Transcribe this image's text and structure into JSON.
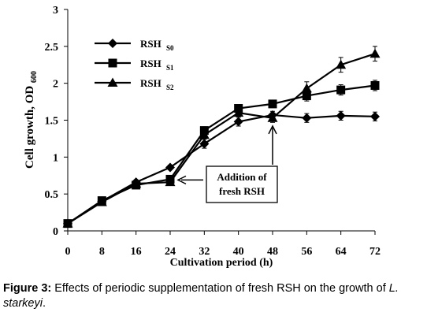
{
  "chart_data": {
    "type": "line",
    "xlabel": "Cultivation period (h)",
    "ylabel": "Cell growth, OD",
    "ylabel_sub": "600",
    "x": [
      0,
      8,
      16,
      24,
      32,
      40,
      48,
      56,
      64,
      72
    ],
    "xlim": [
      0,
      72
    ],
    "ylim": [
      0,
      3
    ],
    "yticks": [
      "0",
      "0.5",
      "1",
      "1.5",
      "2",
      "2.5",
      "3"
    ],
    "xticks": [
      "0",
      "8",
      "16",
      "24",
      "32",
      "40",
      "48",
      "56",
      "64",
      "72"
    ],
    "grid": false,
    "legend_position": "top-left",
    "series": [
      {
        "name": "RSH",
        "name_sub": "S0",
        "marker": "diamond",
        "x": [
          0,
          8,
          16,
          24,
          32,
          40,
          48,
          56,
          64,
          72
        ],
        "values": [
          0.1,
          0.4,
          0.66,
          0.86,
          1.18,
          1.48,
          1.57,
          1.53,
          1.56,
          1.55
        ],
        "errors": [
          0.02,
          0.03,
          0.03,
          0.03,
          0.06,
          0.06,
          0.05,
          0.06,
          0.06,
          0.06
        ]
      },
      {
        "name": "RSH",
        "name_sub": "S1",
        "marker": "square",
        "x": [
          0,
          8,
          16,
          24,
          32,
          40,
          48,
          56,
          64,
          72
        ],
        "values": [
          0.1,
          0.41,
          0.62,
          0.7,
          1.36,
          1.66,
          1.72,
          1.83,
          1.91,
          1.97
        ],
        "errors": [
          0.02,
          0.03,
          0.03,
          0.03,
          0.05,
          0.05,
          0.05,
          0.07,
          0.07,
          0.07
        ]
      },
      {
        "name": "RSH",
        "name_sub": "S2",
        "marker": "triangle",
        "x": [
          0,
          8,
          16,
          24,
          32,
          40,
          48,
          56,
          64,
          72
        ],
        "values": [
          0.1,
          0.39,
          0.64,
          0.66,
          1.3,
          1.6,
          1.53,
          1.93,
          2.25,
          2.4
        ],
        "errors": [
          0.02,
          0.03,
          0.03,
          0.03,
          0.05,
          0.05,
          0.06,
          0.09,
          0.1,
          0.1
        ]
      }
    ],
    "annotations": [
      {
        "text_lines": [
          "Addition of",
          "fresh RSH"
        ],
        "arrow_targets": [
          {
            "x": 24,
            "y": 0.69
          },
          {
            "x": 48,
            "y": 1.4
          }
        ]
      }
    ]
  },
  "caption": {
    "label": "Figure 3:",
    "text": " Effects of periodic supplementation of fresh RSH on the growth of ",
    "species": "L. starkeyi",
    "end": "."
  }
}
